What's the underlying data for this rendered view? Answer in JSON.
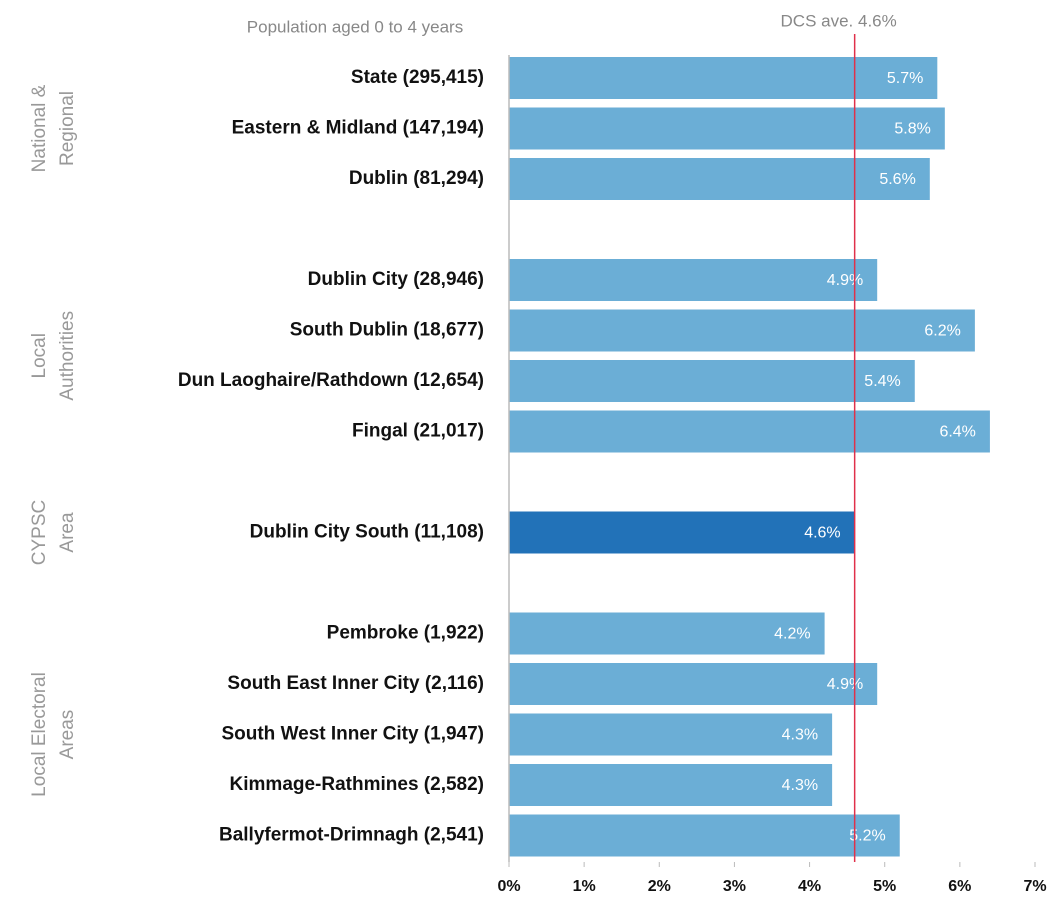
{
  "chart_data": {
    "type": "bar",
    "orientation": "horizontal",
    "y_label": "Population aged 0 to 4 years",
    "groups": [
      {
        "label": [
          "National &",
          "Regional"
        ],
        "color": "#6baed6",
        "categories": [
          "State (295,415)",
          "Eastern & Midland (147,194)",
          "Dublin (81,294)"
        ],
        "values": [
          5.7,
          5.8,
          5.6
        ],
        "value_labels": [
          "5.7%",
          "5.8%",
          "5.6%"
        ]
      },
      {
        "label": [
          "Local",
          "Authorities"
        ],
        "color": "#6baed6",
        "categories": [
          "Dublin City (28,946)",
          "South Dublin (18,677)",
          "Dun Laoghaire/Rathdown (12,654)",
          "Fingal (21,017)"
        ],
        "values": [
          4.9,
          6.2,
          5.4,
          6.4
        ],
        "value_labels": [
          "4.9%",
          "6.2%",
          "5.4%",
          "6.4%"
        ]
      },
      {
        "label": [
          "CYPSC",
          "Area"
        ],
        "color": "#2272b8",
        "categories": [
          "Dublin City South (11,108)"
        ],
        "values": [
          4.6
        ],
        "value_labels": [
          "4.6%"
        ]
      },
      {
        "label": [
          "Local Electoral",
          "Areas"
        ],
        "color": "#6baed6",
        "categories": [
          "Pembroke (1,922)",
          "South East Inner City (2,116)",
          "South West Inner City (1,947)",
          "Kimmage-Rathmines (2,582)",
          "Ballyfermot-Drimnagh (2,541)"
        ],
        "values": [
          4.2,
          4.9,
          4.3,
          4.3,
          5.2
        ],
        "value_labels": [
          "4.2%",
          "4.9%",
          "4.3%",
          "4.3%",
          "5.2%"
        ]
      }
    ],
    "reference_line": {
      "value": 4.6,
      "label": "DCS ave. 4.6%",
      "color": "#e0304a"
    },
    "xlim": [
      0,
      7
    ],
    "xticks": [
      {
        "value": 0,
        "label": "0%"
      },
      {
        "value": 1,
        "label": "1%"
      },
      {
        "value": 2,
        "label": "2%"
      },
      {
        "value": 3,
        "label": "3%"
      },
      {
        "value": 4,
        "label": "4%"
      },
      {
        "value": 5,
        "label": "5%"
      },
      {
        "value": 6,
        "label": "6%"
      },
      {
        "value": 7,
        "label": "7%"
      }
    ],
    "grid": false
  }
}
